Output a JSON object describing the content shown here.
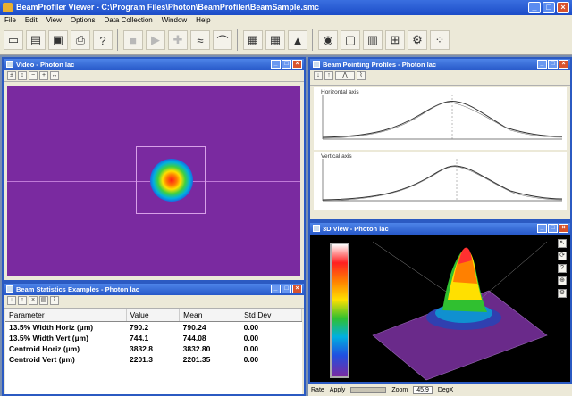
{
  "app": {
    "title": "BeamProfiler Viewer - C:\\Program Files\\Photon\\BeamProfiler\\BeamSample.smc"
  },
  "menu": [
    "File",
    "Edit",
    "View",
    "Options",
    "Data Collection",
    "Window",
    "Help"
  ],
  "toolbar": [
    {
      "icon": "new-icon",
      "glyph": "▭"
    },
    {
      "icon": "open-icon",
      "glyph": "▤"
    },
    {
      "icon": "save-icon",
      "glyph": "▣"
    },
    {
      "icon": "print-icon",
      "glyph": "⎙"
    },
    {
      "icon": "help-icon",
      "glyph": "?"
    },
    {
      "icon": "stop-icon",
      "glyph": "■"
    },
    {
      "icon": "play-icon",
      "glyph": "▶"
    },
    {
      "icon": "crosshair-icon",
      "glyph": "✚"
    },
    {
      "icon": "profile-icon",
      "glyph": "≈"
    },
    {
      "icon": "beam-icon",
      "glyph": "⌒"
    },
    {
      "icon": "grid-icon",
      "glyph": "▦"
    },
    {
      "icon": "grid2-icon",
      "glyph": "▦"
    },
    {
      "icon": "3d-icon",
      "glyph": "▲"
    },
    {
      "icon": "globe-icon",
      "glyph": "◉"
    },
    {
      "icon": "image-icon",
      "glyph": "▢"
    },
    {
      "icon": "chart-icon",
      "glyph": "▥"
    },
    {
      "icon": "layout-icon",
      "glyph": "⊞"
    },
    {
      "icon": "settings-icon",
      "glyph": "⚙"
    },
    {
      "icon": "scatter-icon",
      "glyph": "⁘"
    }
  ],
  "video_window": {
    "title": "Video - Photon lac"
  },
  "profile_window": {
    "title": "Beam Pointing Profiles - Photon lac",
    "horiz_label": "Horizontal axis",
    "vert_label": "Vertical axis"
  },
  "stats_window": {
    "title": "Beam Statistics Examples - Photon lac"
  },
  "stats": {
    "headers": [
      "Parameter",
      "Value",
      "Mean",
      "Std Dev"
    ],
    "rows": [
      [
        "13.5% Width Horiz (µm)",
        "790.2",
        "790.24",
        "0.00"
      ],
      [
        "13.5% Width Vert (µm)",
        "744.1",
        "744.08",
        "0.00"
      ],
      [
        "Centroid Horiz (µm)",
        "3832.8",
        "3832.80",
        "0.00"
      ],
      [
        "Centroid Vert (µm)",
        "2201.3",
        "2201.35",
        "0.00"
      ]
    ]
  },
  "view3d_window": {
    "title": "3D View - Photon lac"
  },
  "status": {
    "rate_label": "Rate",
    "rate": "",
    "apply_label": "Apply",
    "zoom_label": "Zoom",
    "zoom_value": "45.9",
    "units": "DegX"
  },
  "colors": {
    "titlebar": "#2758c8",
    "background": "#7a2aa0",
    "beam_core": "#ff2020"
  }
}
